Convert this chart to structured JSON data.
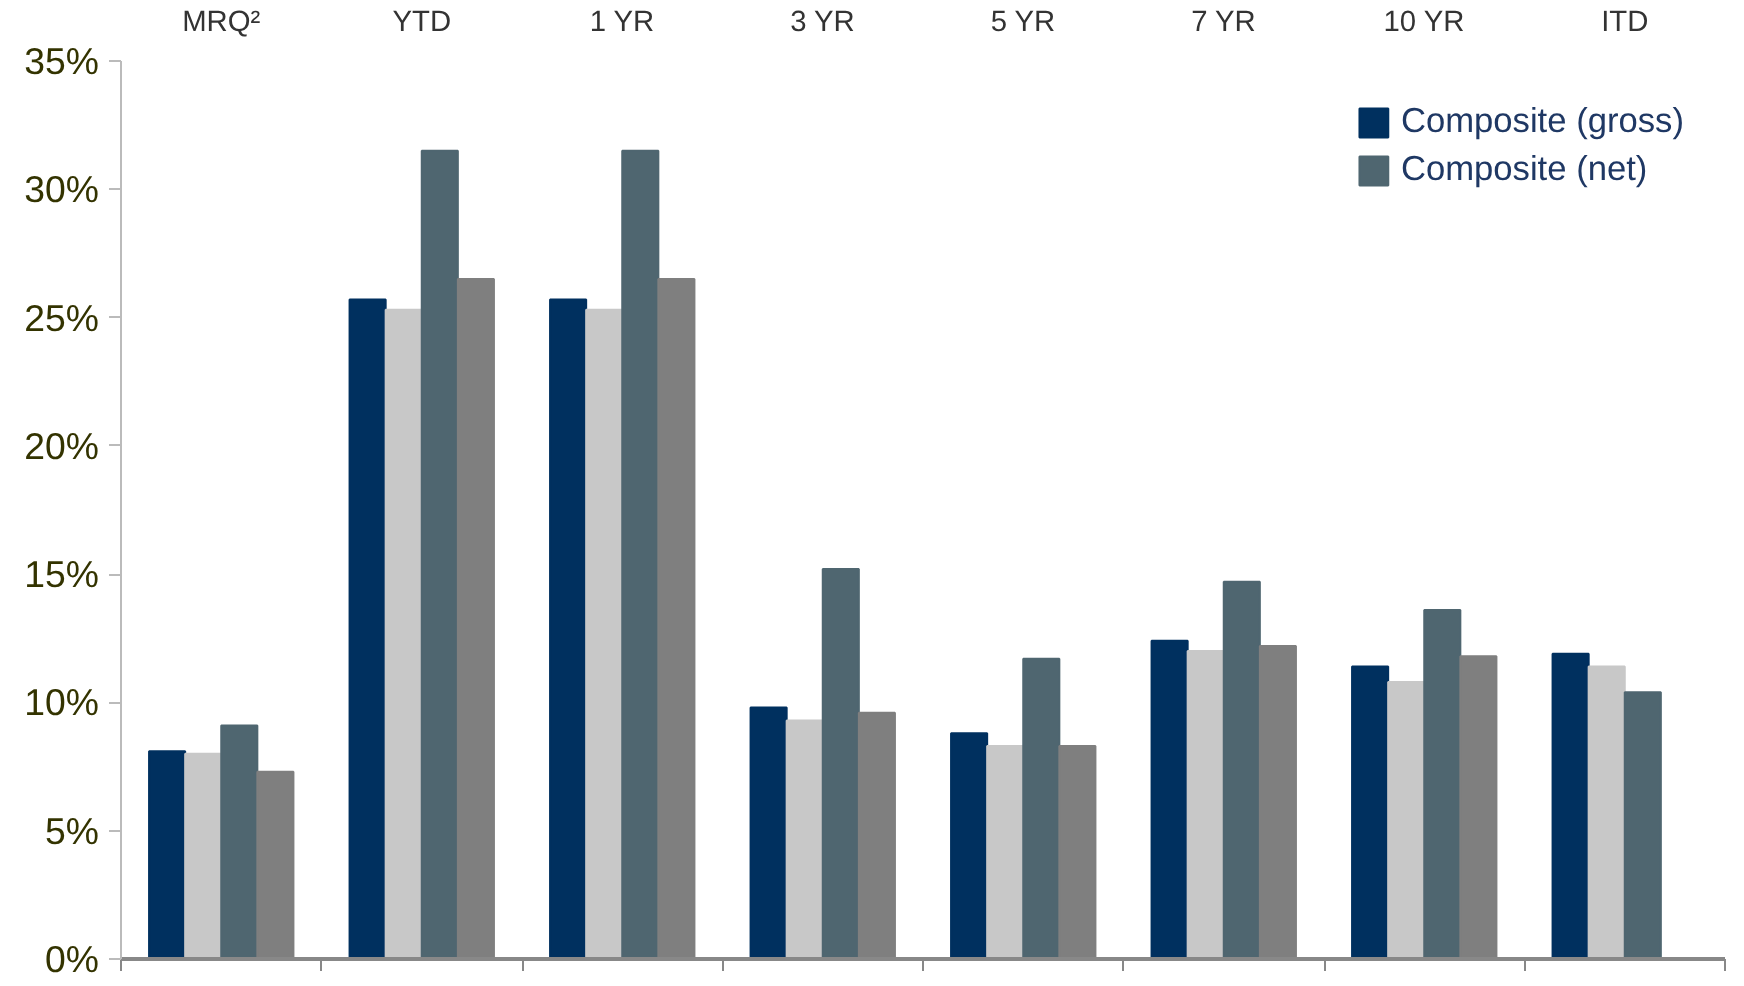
{
  "chart_data": {
    "type": "bar",
    "categories": [
      "MRQ²",
      "YTD",
      "1 YR",
      "3 YR",
      "5 YR",
      "7 YR",
      "10 YR",
      "ITD"
    ],
    "series": [
      {
        "name": "Composite (gross)",
        "color": "#00305f",
        "values": [
          8.1,
          25.7,
          25.7,
          9.8,
          8.8,
          12.4,
          11.4,
          11.9
        ]
      },
      {
        "color": "#c8c8c8",
        "values": [
          8.0,
          25.3,
          25.3,
          9.3,
          8.3,
          12.0,
          10.8,
          11.4
        ]
      },
      {
        "name": "Composite (net)",
        "color": "#4f6670",
        "values": [
          9.1,
          31.5,
          31.5,
          15.2,
          11.7,
          14.7,
          13.6,
          10.4
        ]
      },
      {
        "color": "#7f7f7f",
        "values": [
          7.3,
          26.5,
          26.5,
          9.6,
          8.3,
          12.2,
          11.8,
          null
        ]
      }
    ],
    "ylim": [
      0,
      35
    ],
    "yticks": [
      {
        "value": 0,
        "label": "0%"
      },
      {
        "value": 5,
        "label": "5%"
      },
      {
        "value": 10,
        "label": "10%"
      },
      {
        "value": 15,
        "label": "15%"
      },
      {
        "value": 20,
        "label": "20%"
      },
      {
        "value": 25,
        "label": "25%"
      },
      {
        "value": 30,
        "label": "30%"
      },
      {
        "value": 35,
        "label": "35%"
      }
    ],
    "grid": false,
    "legend": "top right"
  }
}
